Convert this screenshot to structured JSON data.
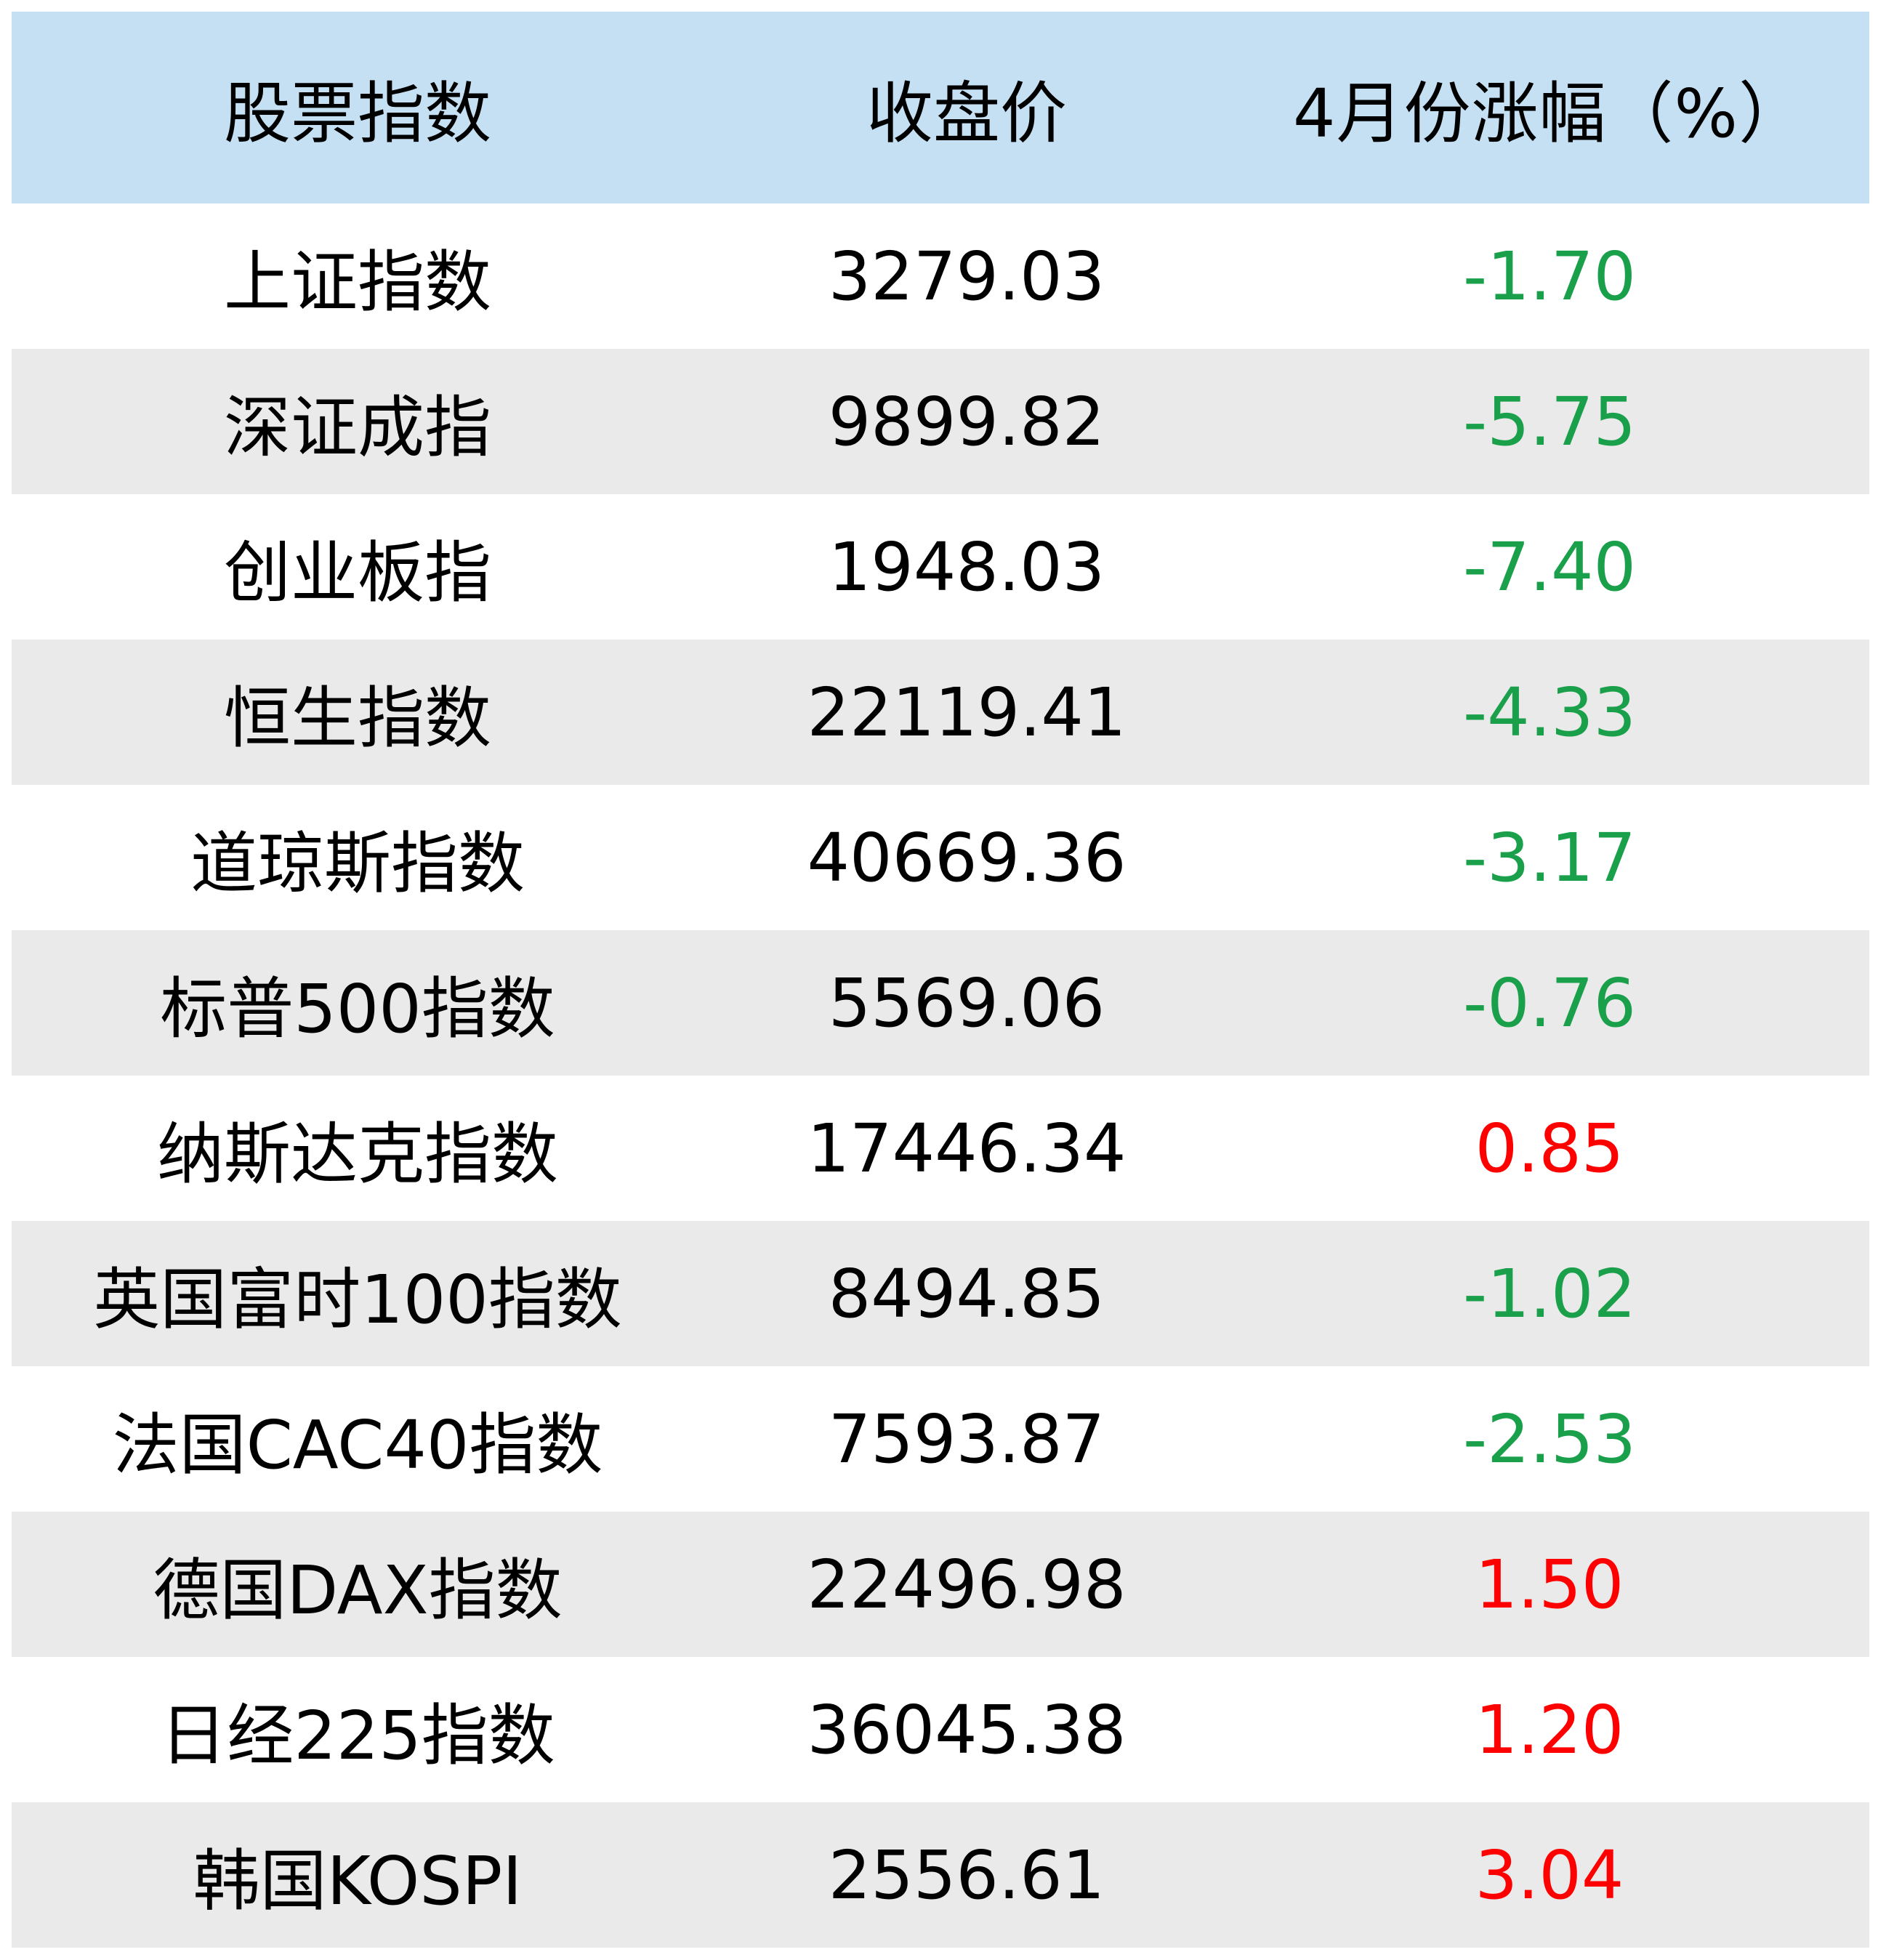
{
  "table": {
    "headers": [
      "股票指数",
      "收盘价",
      "4月份涨幅（%）"
    ],
    "rows": [
      {
        "name": "上证指数",
        "close": "3279.03",
        "change": "-1.70"
      },
      {
        "name": "深证成指",
        "close": "9899.82",
        "change": "-5.75"
      },
      {
        "name": "创业板指",
        "close": "1948.03",
        "change": "-7.40"
      },
      {
        "name": "恒生指数",
        "close": "22119.41",
        "change": "-4.33"
      },
      {
        "name": "道琼斯指数",
        "close": "40669.36",
        "change": "-3.17"
      },
      {
        "name": "标普500指数",
        "close": "5569.06",
        "change": "-0.76"
      },
      {
        "name": "纳斯达克指数",
        "close": "17446.34",
        "change": "0.85"
      },
      {
        "name": "英国富时100指数",
        "close": "8494.85",
        "change": "-1.02"
      },
      {
        "name": "法国CAC40指数",
        "close": "7593.87",
        "change": "-2.53"
      },
      {
        "name": "德国DAX指数",
        "close": "22496.98",
        "change": "1.50"
      },
      {
        "name": "日经225指数",
        "close": "36045.38",
        "change": "1.20"
      },
      {
        "name": "韩国KOSPI",
        "close": "2556.61",
        "change": "3.04"
      }
    ]
  },
  "colors": {
    "header_bg": "#c5dff3",
    "stripe_bg": "#eaeaea",
    "negative": "#1aa04a",
    "positive": "#ff0000"
  }
}
